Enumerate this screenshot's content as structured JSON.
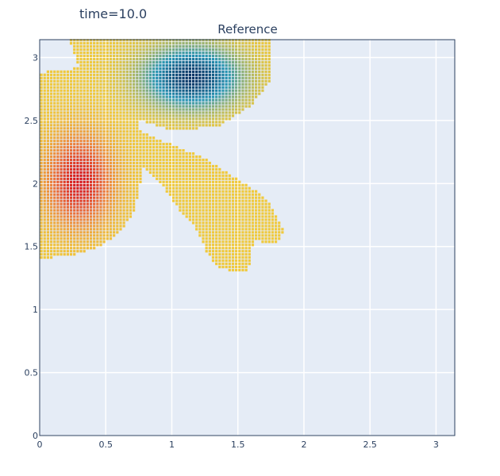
{
  "top_title": "time=10.0",
  "chart_data": {
    "type": "scatter",
    "title": "Reference",
    "xlabel": "",
    "ylabel": "",
    "xlim": [
      0,
      3.14159
    ],
    "ylim": [
      0,
      3.14159
    ],
    "x_ticks": [
      0,
      0.5,
      1,
      1.5,
      2,
      2.5,
      3
    ],
    "x_tick_labels": [
      "0",
      "0.5",
      "1",
      "1.5",
      "2",
      "2.5",
      "3"
    ],
    "y_ticks": [
      0,
      0.5,
      1,
      1.5,
      2,
      2.5,
      3
    ],
    "y_tick_labels": [
      "0",
      "0.5",
      "1",
      "1.5",
      "2",
      "2.5",
      "3"
    ],
    "grid": true,
    "marker_spacing": 0.025,
    "colors": {
      "plot_bg": "#e5ecf6",
      "grid": "#ffffff",
      "axis": "#2a3f5f",
      "neutral": "#f0c93c",
      "positive_peak": "#d7191c",
      "negative_peak": "#053061"
    },
    "regions": [
      {
        "name": "upper-band",
        "polygon": [
          [
            0.22,
            3.14
          ],
          [
            1.75,
            3.14
          ],
          [
            1.75,
            2.82
          ],
          [
            1.6,
            2.62
          ],
          [
            1.35,
            2.45
          ],
          [
            1.0,
            2.42
          ],
          [
            0.72,
            2.52
          ],
          [
            0.55,
            2.72
          ],
          [
            0.3,
            2.9
          ]
        ]
      },
      {
        "name": "left-lobe",
        "polygon": [
          [
            0,
            2.88
          ],
          [
            0.3,
            2.92
          ],
          [
            0.55,
            2.72
          ],
          [
            0.75,
            2.5
          ],
          [
            0.78,
            2.1
          ],
          [
            0.72,
            1.78
          ],
          [
            0.6,
            1.6
          ],
          [
            0.45,
            1.5
          ],
          [
            0.25,
            1.43
          ],
          [
            0,
            1.4
          ]
        ]
      },
      {
        "name": "diagonal-arm",
        "polygon": [
          [
            0.7,
            2.45
          ],
          [
            0.9,
            2.35
          ],
          [
            1.25,
            2.2
          ],
          [
            1.55,
            2.0
          ],
          [
            1.72,
            1.88
          ],
          [
            1.86,
            1.62
          ],
          [
            1.78,
            1.52
          ],
          [
            1.62,
            1.55
          ],
          [
            1.58,
            1.3
          ],
          [
            1.35,
            1.32
          ],
          [
            1.25,
            1.48
          ],
          [
            1.2,
            1.62
          ],
          [
            1.05,
            1.8
          ],
          [
            0.95,
            1.95
          ],
          [
            0.8,
            2.1
          ],
          [
            0.7,
            2.25
          ]
        ]
      }
    ],
    "blobs": [
      {
        "name": "negative-vortex",
        "center": [
          1.15,
          2.84
        ],
        "radius": [
          0.42,
          0.28
        ],
        "amplitude": -1.0
      },
      {
        "name": "positive-vortex",
        "center": [
          0.3,
          2.02
        ],
        "radius": [
          0.3,
          0.42
        ],
        "amplitude": 1.0
      }
    ]
  }
}
